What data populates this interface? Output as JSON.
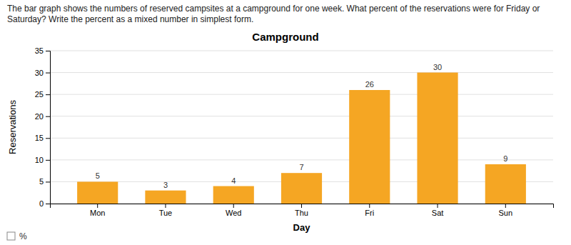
{
  "chart_data": {
    "type": "bar",
    "title": "Campground",
    "subtitle": "The bar graph shows the numbers of reserved campsites at a campground for one week. What percent of the reservations were for Friday or\nSaturday? Write the percent as a mixed number in simplest form.",
    "xlabel": "Day",
    "ylabel": "Reservations",
    "categories": [
      "Mon",
      "Tue",
      "Wed",
      "Thu",
      "Fri",
      "Sat",
      "Sun"
    ],
    "values": [
      5,
      3,
      4,
      7,
      26,
      30,
      9
    ],
    "color": "#F5A623",
    "ylim": [
      0,
      35
    ],
    "yticks": [
      0,
      5,
      10,
      15,
      20,
      25,
      30,
      35
    ],
    "grid": true,
    "data_labels": true,
    "annotations": [
      "%"
    ]
  }
}
